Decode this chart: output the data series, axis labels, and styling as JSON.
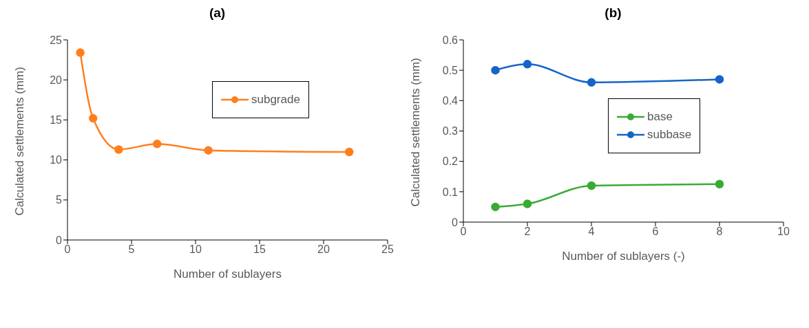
{
  "chart_data": [
    {
      "type": "line",
      "title": "(a)",
      "xlabel": "Number of sublayers",
      "ylabel": "Calculated settlements  (mm)",
      "x": [
        1,
        2,
        4,
        7,
        11,
        22
      ],
      "series": [
        {
          "name": "subgrade",
          "color": "#ff7f1e",
          "values": [
            23.4,
            15.2,
            11.3,
            12.0,
            11.2,
            11.0
          ]
        }
      ],
      "xlim": [
        0,
        25
      ],
      "xticks": [
        0,
        5,
        10,
        15,
        20,
        25
      ],
      "ylim": [
        0,
        25
      ],
      "yticks": [
        0,
        5,
        10,
        15,
        20,
        25
      ],
      "grid": false,
      "legend": "top right",
      "marker": "circle",
      "line_style": "solid"
    },
    {
      "type": "line",
      "title": "(b)",
      "xlabel": "Number of sublayers (-)",
      "ylabel": "Calculated settlements (mm)",
      "x": [
        1,
        2,
        4,
        8
      ],
      "series": [
        {
          "name": "base",
          "color": "#3aaa35",
          "values": [
            0.05,
            0.06,
            0.12,
            0.125
          ]
        },
        {
          "name": "subbase",
          "color": "#1565c8",
          "values": [
            0.5,
            0.52,
            0.46,
            0.47
          ]
        }
      ],
      "xlim": [
        0,
        10
      ],
      "xticks": [
        0,
        2,
        4,
        6,
        8,
        10
      ],
      "ylim": [
        0,
        0.6
      ],
      "yticks": [
        0,
        0.1,
        0.2,
        0.3,
        0.4,
        0.5,
        0.6
      ],
      "grid": false,
      "legend": "right",
      "marker": "circle",
      "line_style": "solid"
    }
  ]
}
